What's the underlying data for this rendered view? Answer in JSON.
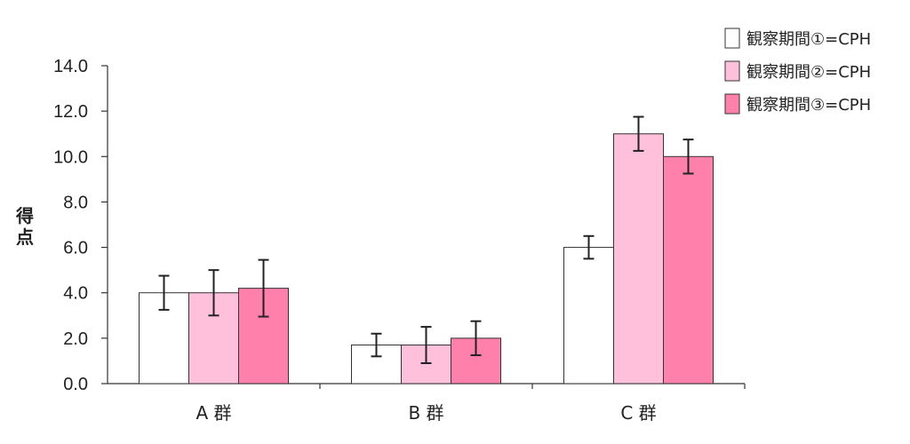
{
  "chart_data": {
    "type": "bar",
    "title": "",
    "xlabel": "",
    "ylabel": "得点",
    "ylim": [
      0,
      14
    ],
    "yticks": [
      "0.0",
      "2.0",
      "4.0",
      "6.0",
      "8.0",
      "10.0",
      "12.0",
      "14.0"
    ],
    "grid": false,
    "legend_position": "top-right",
    "categories": [
      "A 群",
      "B 群",
      "C 群"
    ],
    "series": [
      {
        "name": "観察期間①=CPH",
        "color": "#ffffff",
        "values": [
          4.0,
          1.7,
          6.0
        ],
        "error": [
          0.75,
          0.5,
          0.5
        ]
      },
      {
        "name": "観察期間②=CPH",
        "color": "#ffc0dc",
        "values": [
          4.0,
          1.7,
          11.0
        ],
        "error": [
          1.0,
          0.8,
          0.75
        ]
      },
      {
        "name": "観察期間③=CPH",
        "color": "#ff80ab",
        "values": [
          4.2,
          2.0,
          10.0
        ],
        "error": [
          1.25,
          0.75,
          0.75
        ]
      }
    ]
  }
}
